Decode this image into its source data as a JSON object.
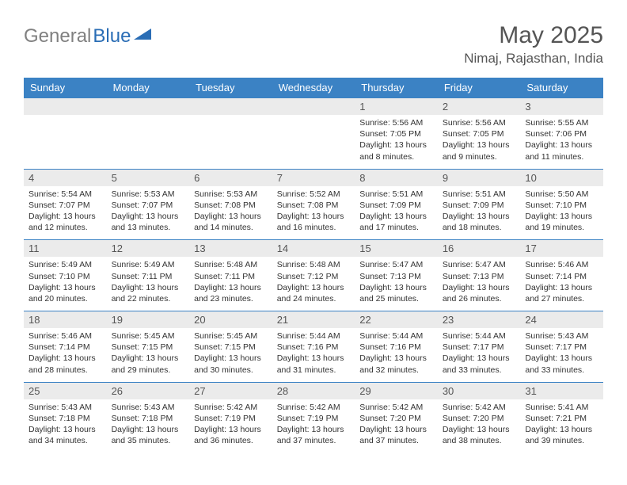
{
  "brand": {
    "part1": "General",
    "part2": "Blue"
  },
  "title": "May 2025",
  "location": "Nimaj, Rajasthan, India",
  "colors": {
    "header_bg": "#3b82c4",
    "header_text": "#ffffff",
    "daynum_bg": "#ebebeb",
    "text_gray": "#555555",
    "row_divider": "#3b82c4",
    "logo_gray": "#808080",
    "logo_blue": "#2a6db5"
  },
  "weekdays": [
    "Sunday",
    "Monday",
    "Tuesday",
    "Wednesday",
    "Thursday",
    "Friday",
    "Saturday"
  ],
  "weeks": [
    [
      null,
      null,
      null,
      null,
      {
        "n": "1",
        "sr": "5:56 AM",
        "ss": "7:05 PM",
        "dl": "13 hours and 8 minutes."
      },
      {
        "n": "2",
        "sr": "5:56 AM",
        "ss": "7:05 PM",
        "dl": "13 hours and 9 minutes."
      },
      {
        "n": "3",
        "sr": "5:55 AM",
        "ss": "7:06 PM",
        "dl": "13 hours and 11 minutes."
      }
    ],
    [
      {
        "n": "4",
        "sr": "5:54 AM",
        "ss": "7:07 PM",
        "dl": "13 hours and 12 minutes."
      },
      {
        "n": "5",
        "sr": "5:53 AM",
        "ss": "7:07 PM",
        "dl": "13 hours and 13 minutes."
      },
      {
        "n": "6",
        "sr": "5:53 AM",
        "ss": "7:08 PM",
        "dl": "13 hours and 14 minutes."
      },
      {
        "n": "7",
        "sr": "5:52 AM",
        "ss": "7:08 PM",
        "dl": "13 hours and 16 minutes."
      },
      {
        "n": "8",
        "sr": "5:51 AM",
        "ss": "7:09 PM",
        "dl": "13 hours and 17 minutes."
      },
      {
        "n": "9",
        "sr": "5:51 AM",
        "ss": "7:09 PM",
        "dl": "13 hours and 18 minutes."
      },
      {
        "n": "10",
        "sr": "5:50 AM",
        "ss": "7:10 PM",
        "dl": "13 hours and 19 minutes."
      }
    ],
    [
      {
        "n": "11",
        "sr": "5:49 AM",
        "ss": "7:10 PM",
        "dl": "13 hours and 20 minutes."
      },
      {
        "n": "12",
        "sr": "5:49 AM",
        "ss": "7:11 PM",
        "dl": "13 hours and 22 minutes."
      },
      {
        "n": "13",
        "sr": "5:48 AM",
        "ss": "7:11 PM",
        "dl": "13 hours and 23 minutes."
      },
      {
        "n": "14",
        "sr": "5:48 AM",
        "ss": "7:12 PM",
        "dl": "13 hours and 24 minutes."
      },
      {
        "n": "15",
        "sr": "5:47 AM",
        "ss": "7:13 PM",
        "dl": "13 hours and 25 minutes."
      },
      {
        "n": "16",
        "sr": "5:47 AM",
        "ss": "7:13 PM",
        "dl": "13 hours and 26 minutes."
      },
      {
        "n": "17",
        "sr": "5:46 AM",
        "ss": "7:14 PM",
        "dl": "13 hours and 27 minutes."
      }
    ],
    [
      {
        "n": "18",
        "sr": "5:46 AM",
        "ss": "7:14 PM",
        "dl": "13 hours and 28 minutes."
      },
      {
        "n": "19",
        "sr": "5:45 AM",
        "ss": "7:15 PM",
        "dl": "13 hours and 29 minutes."
      },
      {
        "n": "20",
        "sr": "5:45 AM",
        "ss": "7:15 PM",
        "dl": "13 hours and 30 minutes."
      },
      {
        "n": "21",
        "sr": "5:44 AM",
        "ss": "7:16 PM",
        "dl": "13 hours and 31 minutes."
      },
      {
        "n": "22",
        "sr": "5:44 AM",
        "ss": "7:16 PM",
        "dl": "13 hours and 32 minutes."
      },
      {
        "n": "23",
        "sr": "5:44 AM",
        "ss": "7:17 PM",
        "dl": "13 hours and 33 minutes."
      },
      {
        "n": "24",
        "sr": "5:43 AM",
        "ss": "7:17 PM",
        "dl": "13 hours and 33 minutes."
      }
    ],
    [
      {
        "n": "25",
        "sr": "5:43 AM",
        "ss": "7:18 PM",
        "dl": "13 hours and 34 minutes."
      },
      {
        "n": "26",
        "sr": "5:43 AM",
        "ss": "7:18 PM",
        "dl": "13 hours and 35 minutes."
      },
      {
        "n": "27",
        "sr": "5:42 AM",
        "ss": "7:19 PM",
        "dl": "13 hours and 36 minutes."
      },
      {
        "n": "28",
        "sr": "5:42 AM",
        "ss": "7:19 PM",
        "dl": "13 hours and 37 minutes."
      },
      {
        "n": "29",
        "sr": "5:42 AM",
        "ss": "7:20 PM",
        "dl": "13 hours and 37 minutes."
      },
      {
        "n": "30",
        "sr": "5:42 AM",
        "ss": "7:20 PM",
        "dl": "13 hours and 38 minutes."
      },
      {
        "n": "31",
        "sr": "5:41 AM",
        "ss": "7:21 PM",
        "dl": "13 hours and 39 minutes."
      }
    ]
  ],
  "labels": {
    "sunrise": "Sunrise:",
    "sunset": "Sunset:",
    "daylight": "Daylight:"
  }
}
